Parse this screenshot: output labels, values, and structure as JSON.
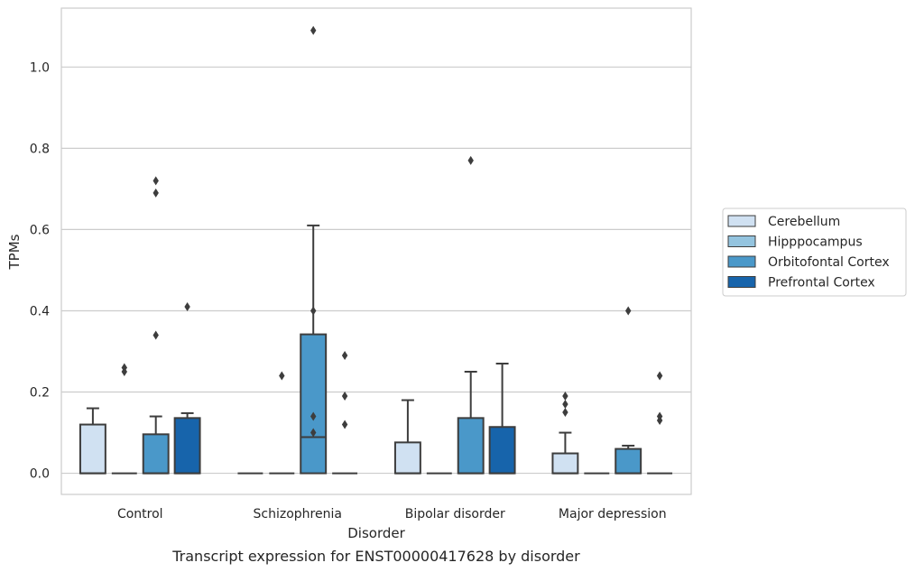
{
  "chart_data": {
    "type": "box",
    "title": "",
    "caption": "Transcript expression for ENST00000417628 by disorder",
    "xlabel": "Disorder",
    "ylabel": "TPMs",
    "ylim": [
      -0.052,
      1.145
    ],
    "yticks": [
      0.0,
      0.2,
      0.4,
      0.6,
      0.8,
      1.0
    ],
    "yticklabels": [
      "0.0",
      "0.2",
      "0.4",
      "0.6",
      "0.8",
      "1.0"
    ],
    "grid": "horizontal",
    "legend_position": "right",
    "categories": [
      "Control",
      "Schizophrenia",
      "Bipolar disorder",
      "Major depression"
    ],
    "series": [
      {
        "name": "Cerebellum",
        "color": "#d0e1f2",
        "boxes": [
          {
            "category": "Control",
            "q1": 0.0,
            "median": 0.0,
            "q3": 0.12,
            "whisker_low": 0.0,
            "whisker_high": 0.16,
            "outliers": []
          },
          {
            "category": "Schizophrenia",
            "q1": 0.0,
            "median": 0.0,
            "q3": 0.0,
            "whisker_low": 0.0,
            "whisker_high": 0.0,
            "outliers": []
          },
          {
            "category": "Bipolar disorder",
            "q1": 0.0,
            "median": 0.0,
            "q3": 0.076,
            "whisker_low": 0.0,
            "whisker_high": 0.18,
            "outliers": []
          },
          {
            "category": "Major depression",
            "q1": 0.0,
            "median": 0.0,
            "q3": 0.049,
            "whisker_low": 0.0,
            "whisker_high": 0.1,
            "outliers": [
              0.15,
              0.17,
              0.19
            ]
          }
        ]
      },
      {
        "name": "Hipppocampus",
        "color": "#94c4df",
        "boxes": [
          {
            "category": "Control",
            "q1": 0.0,
            "median": 0.0,
            "q3": 0.0,
            "whisker_low": 0.0,
            "whisker_high": 0.0,
            "outliers": [
              0.25,
              0.26
            ]
          },
          {
            "category": "Schizophrenia",
            "q1": 0.0,
            "median": 0.0,
            "q3": 0.0,
            "whisker_low": 0.0,
            "whisker_high": 0.0,
            "outliers": [
              0.24
            ]
          },
          {
            "category": "Bipolar disorder",
            "q1": 0.0,
            "median": 0.0,
            "q3": 0.0,
            "whisker_low": 0.0,
            "whisker_high": 0.0,
            "outliers": []
          },
          {
            "category": "Major depression",
            "q1": 0.0,
            "median": 0.0,
            "q3": 0.0,
            "whisker_low": 0.0,
            "whisker_high": 0.0,
            "outliers": []
          }
        ]
      },
      {
        "name": "Orbitofontal Cortex",
        "color": "#4a98c9",
        "boxes": [
          {
            "category": "Control",
            "q1": 0.0,
            "median": 0.0,
            "q3": 0.096,
            "whisker_low": 0.0,
            "whisker_high": 0.14,
            "outliers": [
              0.34,
              0.69,
              0.72
            ]
          },
          {
            "category": "Schizophrenia",
            "q1": 0.0,
            "median": 0.089,
            "q3": 0.342,
            "whisker_low": 0.0,
            "whisker_high": 0.61,
            "outliers": [
              0.1,
              0.14,
              0.4,
              1.09
            ]
          },
          {
            "category": "Bipolar disorder",
            "q1": 0.0,
            "median": 0.0,
            "q3": 0.136,
            "whisker_low": 0.0,
            "whisker_high": 0.25,
            "outliers": [
              0.77
            ]
          },
          {
            "category": "Major depression",
            "q1": 0.0,
            "median": 0.0,
            "q3": 0.06,
            "whisker_low": 0.0,
            "whisker_high": 0.068,
            "outliers": [
              0.4
            ]
          }
        ]
      },
      {
        "name": "Prefrontal Cortex",
        "color": "#1764ab",
        "boxes": [
          {
            "category": "Control",
            "q1": 0.0,
            "median": 0.0,
            "q3": 0.136,
            "whisker_low": 0.0,
            "whisker_high": 0.148,
            "outliers": [
              0.41
            ]
          },
          {
            "category": "Schizophrenia",
            "q1": 0.0,
            "median": 0.0,
            "q3": 0.0,
            "whisker_low": 0.0,
            "whisker_high": 0.0,
            "outliers": [
              0.12,
              0.19,
              0.29
            ]
          },
          {
            "category": "Bipolar disorder",
            "q1": 0.0,
            "median": 0.0,
            "q3": 0.114,
            "whisker_low": 0.0,
            "whisker_high": 0.27,
            "outliers": []
          },
          {
            "category": "Major depression",
            "q1": 0.0,
            "median": 0.0,
            "q3": 0.0,
            "whisker_low": 0.0,
            "whisker_high": 0.0,
            "outliers": [
              0.13,
              0.14,
              0.24
            ]
          }
        ]
      }
    ]
  }
}
